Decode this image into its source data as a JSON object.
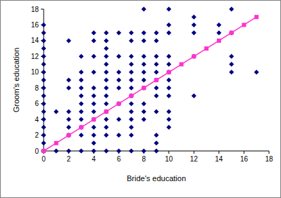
{
  "chart_data": {
    "type": "scatter",
    "xlabel": "Bride's education",
    "ylabel": "Groom's education",
    "xlim": [
      0,
      18
    ],
    "ylim": [
      0,
      18
    ],
    "xticks": [
      0,
      2,
      4,
      6,
      8,
      10,
      12,
      14,
      16,
      18
    ],
    "yticks": [
      0,
      2,
      4,
      6,
      8,
      10,
      12,
      14,
      16,
      18
    ],
    "grid": false,
    "series": [
      {
        "type": "scatter",
        "color": "#000080",
        "marker": "diamond",
        "x": [
          0,
          0,
          0,
          0,
          0,
          0,
          0,
          0,
          0,
          0,
          0,
          0,
          0,
          0,
          0,
          0,
          0,
          1,
          1,
          2,
          2,
          2,
          2,
          2,
          2,
          2,
          2,
          3,
          3,
          3,
          3,
          3,
          3,
          3,
          3,
          3,
          3,
          3,
          4,
          4,
          4,
          4,
          4,
          4,
          4,
          4,
          4,
          4,
          4,
          4,
          4,
          5,
          5,
          5,
          5,
          5,
          5,
          5,
          5,
          5,
          5,
          5,
          5,
          5,
          5,
          5,
          6,
          6,
          6,
          6,
          6,
          6,
          6,
          6,
          6,
          7,
          7,
          7,
          7,
          7,
          7,
          7,
          7,
          7,
          7,
          7,
          7,
          7,
          7,
          8,
          8,
          8,
          8,
          8,
          8,
          8,
          8,
          8,
          8,
          8,
          8,
          9,
          9,
          9,
          9,
          9,
          9,
          9,
          9,
          9,
          9,
          9,
          9,
          10,
          10,
          10,
          10,
          10,
          10,
          10,
          10,
          10,
          10,
          10,
          10,
          12,
          12,
          12,
          12,
          12,
          14,
          14,
          15,
          15,
          15,
          15,
          15,
          17
        ],
        "values": [
          0,
          1,
          2,
          3,
          4,
          5,
          6,
          7,
          8,
          9,
          10,
          11,
          12,
          13,
          14,
          15,
          16,
          5,
          0,
          14,
          9,
          8,
          5,
          4,
          3,
          2,
          0,
          12,
          10,
          9,
          8,
          7,
          6,
          5,
          4,
          3,
          2,
          0,
          15,
          14,
          12,
          10,
          8,
          7,
          6,
          5,
          4,
          3,
          2,
          1,
          0,
          15,
          14,
          13,
          12,
          11,
          10,
          9,
          8,
          7,
          6,
          5,
          4,
          3,
          2,
          0,
          15,
          12,
          10,
          9,
          8,
          6,
          4,
          2,
          0,
          15,
          14,
          12,
          11,
          10,
          9,
          8,
          7,
          6,
          5,
          4,
          3,
          2,
          0,
          18,
          15,
          14,
          12,
          11,
          10,
          9,
          8,
          6,
          5,
          4,
          0,
          15,
          14,
          12,
          11,
          10,
          9,
          8,
          7,
          5,
          2,
          1,
          0,
          18,
          16,
          15,
          12,
          11,
          10,
          9,
          8,
          7,
          5,
          4,
          3,
          17,
          16,
          15,
          12,
          7,
          16,
          15,
          18,
          15,
          12,
          11,
          10,
          10
        ]
      },
      {
        "type": "line",
        "color": "#ff33cc",
        "marker": "square",
        "line_style": "solid",
        "x": [
          0,
          1,
          2,
          3,
          4,
          5,
          6,
          7,
          8,
          9,
          10,
          11,
          12,
          13,
          14,
          15,
          16,
          17
        ],
        "values": [
          0,
          1,
          2,
          3,
          4,
          5,
          6,
          7,
          8,
          9,
          10,
          11,
          12,
          13,
          14,
          15,
          16,
          17
        ]
      }
    ]
  }
}
